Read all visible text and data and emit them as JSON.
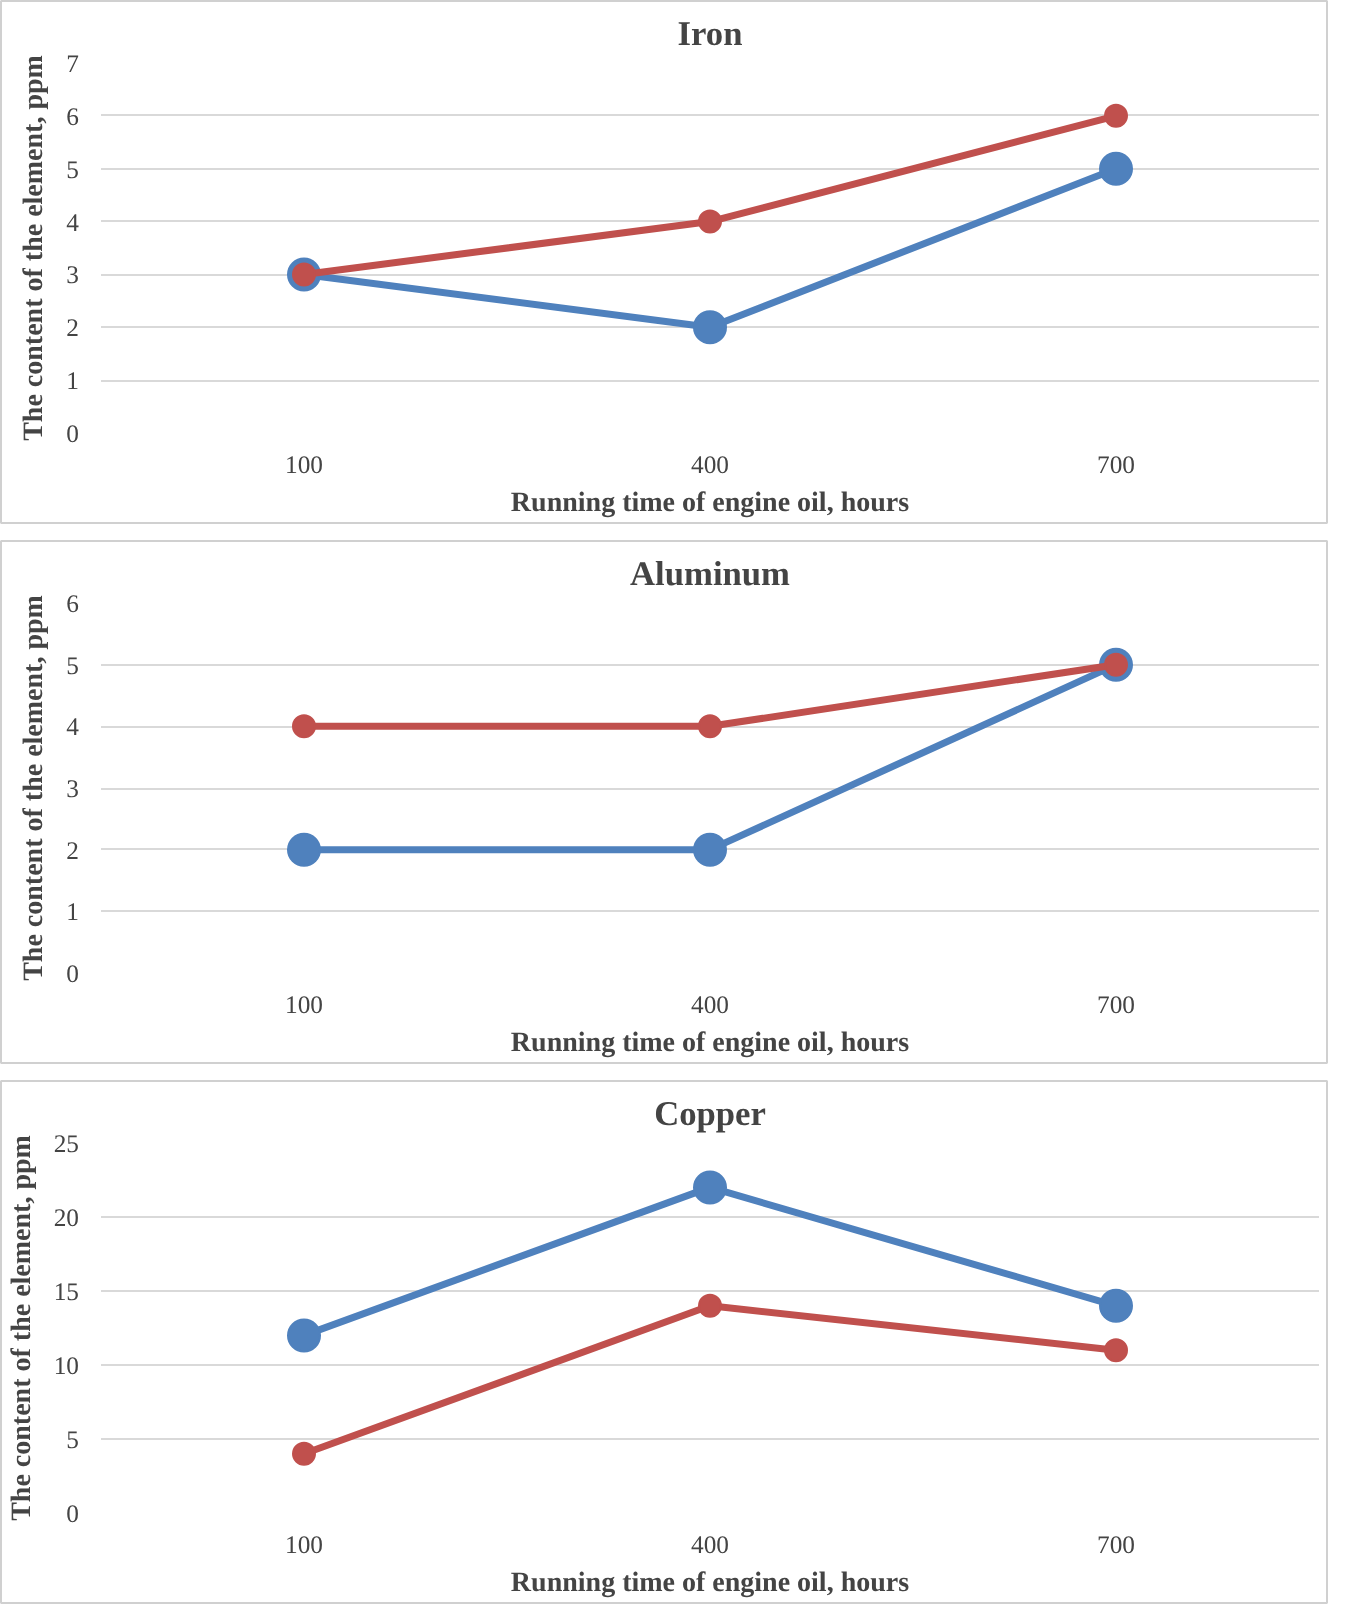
{
  "chart_data": [
    {
      "type": "line",
      "title": "Iron",
      "xlabel": "Running time of engine oil, hours",
      "ylabel": "The content of the element, ppm",
      "categories": [
        "100",
        "400",
        "700"
      ],
      "ylim": [
        0,
        7
      ],
      "yticks": [
        0,
        1,
        2,
        3,
        4,
        5,
        6,
        7
      ],
      "grid": "y",
      "marker": "circle",
      "line_style": "solid",
      "series": [
        {
          "color": "#4f81bd",
          "values": [
            3,
            2,
            5
          ]
        },
        {
          "color": "#c0504d",
          "values": [
            3,
            4,
            6
          ]
        }
      ]
    },
    {
      "type": "line",
      "title": "Aluminum",
      "xlabel": "Running time of engine oil, hours",
      "ylabel": "The content of the element, ppm",
      "categories": [
        "100",
        "400",
        "700"
      ],
      "ylim": [
        0,
        6
      ],
      "yticks": [
        0,
        1,
        2,
        3,
        4,
        5,
        6
      ],
      "grid": "y",
      "marker": "circle",
      "line_style": "solid",
      "series": [
        {
          "color": "#4f81bd",
          "values": [
            2,
            2,
            5
          ]
        },
        {
          "color": "#c0504d",
          "values": [
            4,
            4,
            5
          ]
        }
      ]
    },
    {
      "type": "line",
      "title": "Copper",
      "xlabel": "Running time of engine oil, hours",
      "ylabel": "The content of the element, ppm",
      "categories": [
        "100",
        "400",
        "700"
      ],
      "ylim": [
        0,
        25
      ],
      "yticks": [
        0,
        5,
        10,
        15,
        20,
        25
      ],
      "grid": "y",
      "marker": "circle",
      "line_style": "solid",
      "series": [
        {
          "color": "#4f81bd",
          "values": [
            12,
            22,
            14
          ]
        },
        {
          "color": "#c0504d",
          "values": [
            4,
            14,
            11
          ]
        }
      ]
    }
  ]
}
